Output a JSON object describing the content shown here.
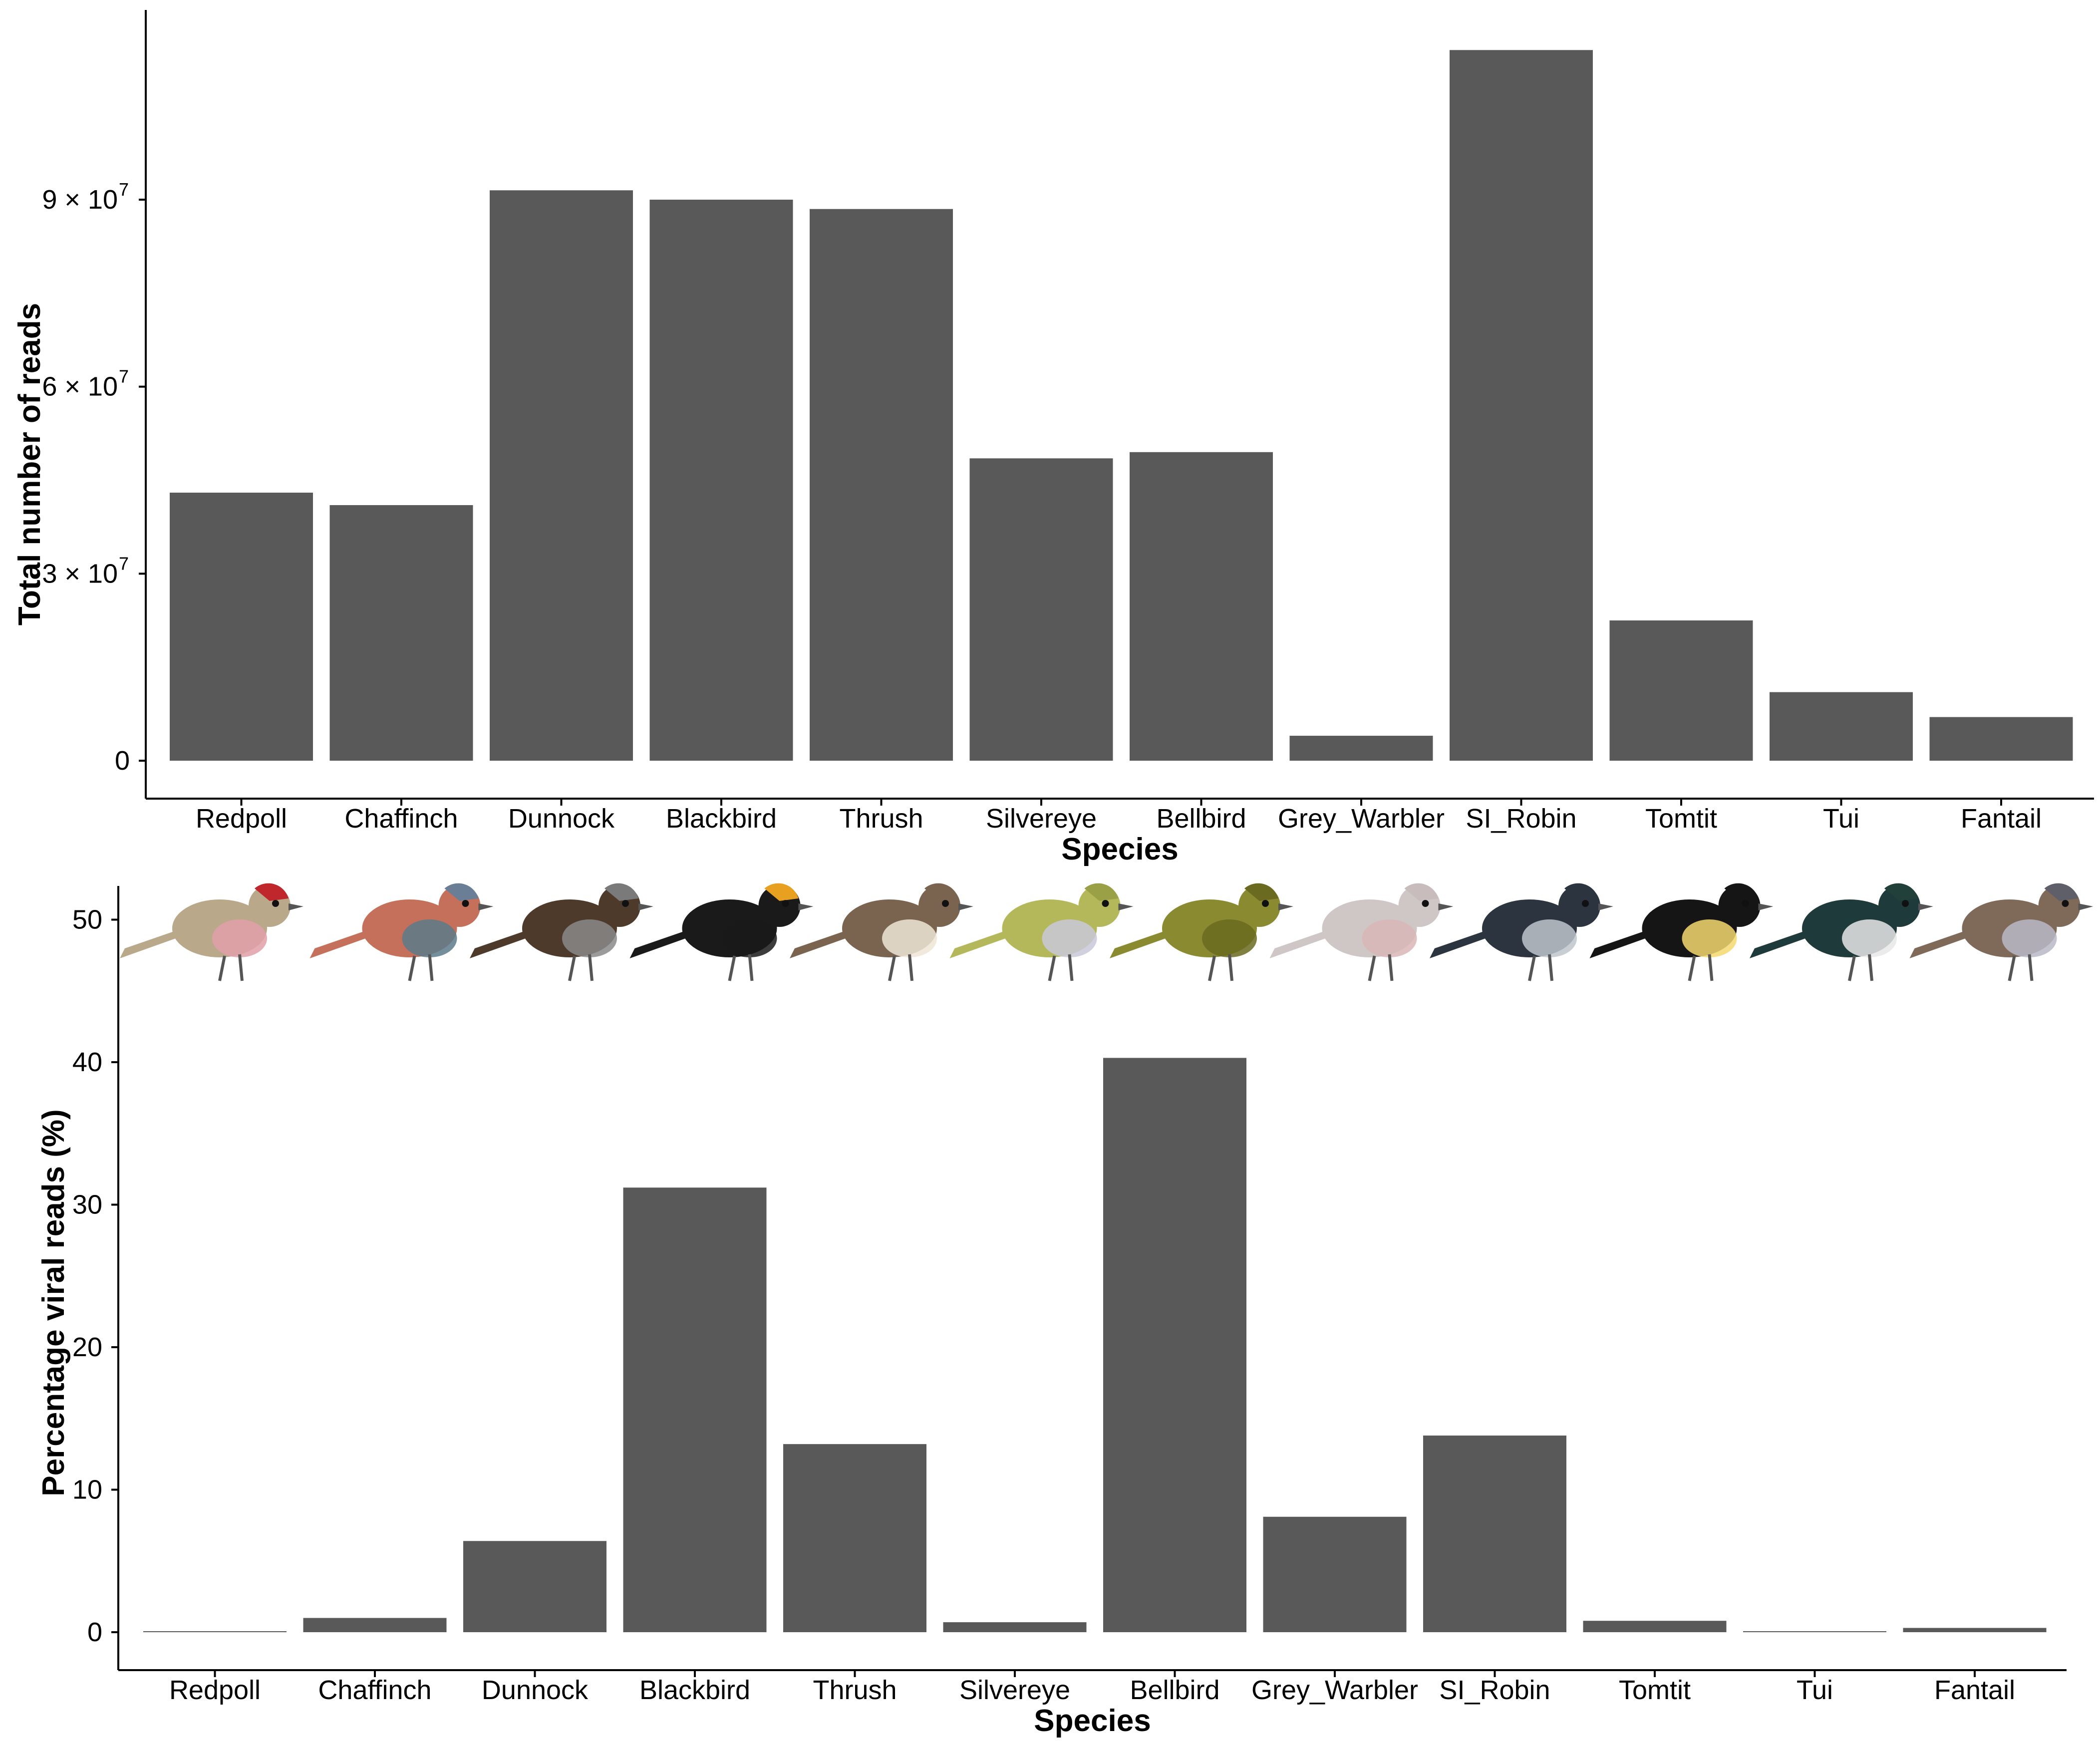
{
  "colors": {
    "bar": "#595959",
    "axis": "#000000",
    "background": "#ffffff"
  },
  "chart_data": [
    {
      "type": "bar",
      "title": "",
      "xlabel": "Species",
      "ylabel": "Total number of reads",
      "ylim": [
        0,
        120000000
      ],
      "categories": [
        "Redpoll",
        "Chaffinch",
        "Dunnock",
        "Blackbird",
        "Thrush",
        "Silvereye",
        "Bellbird",
        "Grey_Warbler",
        "SI_Robin",
        "Tomtit",
        "Tui",
        "Fantail"
      ],
      "values": [
        43000000,
        41000000,
        91500000,
        90000000,
        88500000,
        48500000,
        49500000,
        4000000,
        114000000,
        22500000,
        11000000,
        7000000
      ],
      "yticks": [
        {
          "value": 0,
          "mantissa": "0",
          "exponent": ""
        },
        {
          "value": 30000000,
          "mantissa": "3 × 10",
          "exponent": "7"
        },
        {
          "value": 60000000,
          "mantissa": "6 × 10",
          "exponent": "7"
        },
        {
          "value": 90000000,
          "mantissa": "9 × 10",
          "exponent": "7"
        }
      ]
    },
    {
      "type": "bar",
      "title": "",
      "xlabel": "Species",
      "ylabel": "Percentage viral reads (%)",
      "ylim": [
        0,
        50
      ],
      "categories": [
        "Redpoll",
        "Chaffinch",
        "Dunnock",
        "Blackbird",
        "Thrush",
        "Silvereye",
        "Bellbird",
        "Grey_Warbler",
        "SI_Robin",
        "Tomtit",
        "Tui",
        "Fantail"
      ],
      "values": [
        0.05,
        1.0,
        6.4,
        31.2,
        13.2,
        0.7,
        40.3,
        8.1,
        13.8,
        0.8,
        0.05,
        0.3
      ],
      "yticks": [
        {
          "value": 0,
          "label": "0"
        },
        {
          "value": 10,
          "label": "10"
        },
        {
          "value": 20,
          "label": "20"
        },
        {
          "value": 30,
          "label": "30"
        },
        {
          "value": 40,
          "label": "40"
        },
        {
          "value": 50,
          "label": "50"
        }
      ]
    }
  ],
  "bird_illustrations": [
    {
      "species": "Redpoll",
      "body": "#b9a88a",
      "accent": "#e0a0a8",
      "cap": "#c0272d"
    },
    {
      "species": "Chaffinch",
      "body": "#c4705a",
      "accent": "#5c7a8a",
      "cap": "#6a7f95"
    },
    {
      "species": "Dunnock",
      "body": "#4e3a2a",
      "accent": "#8a8a8a",
      "cap": "#7a7a7a"
    },
    {
      "species": "Blackbird",
      "body": "#1a1a1a",
      "accent": "#1a1a1a",
      "cap": "#e8a020"
    },
    {
      "species": "Thrush",
      "body": "#7a6450",
      "accent": "#efe6d6",
      "cap": "#7a6450"
    },
    {
      "species": "Silvereye",
      "body": "#b5b85a",
      "accent": "#c8c8d8",
      "cap": "#9aa045"
    },
    {
      "species": "Bellbird",
      "body": "#8a8a30",
      "accent": "#6a6a20",
      "cap": "#6a6a20"
    },
    {
      "species": "Grey_Warbler",
      "body": "#cfc6c6",
      "accent": "#d9b6b6",
      "cap": "#c8bcbc"
    },
    {
      "species": "SI_Robin",
      "body": "#2c3440",
      "accent": "#bfc5cc",
      "cap": "#2c3440"
    },
    {
      "species": "Tomtit",
      "body": "#151515",
      "accent": "#f4d870",
      "cap": "#151515"
    },
    {
      "species": "Tui",
      "body": "#1f3a3a",
      "accent": "#e8e8e8",
      "cap": "#22403a"
    },
    {
      "species": "Fantail",
      "body": "#7f6a5a",
      "accent": "#b8b8c8",
      "cap": "#5f5f6a"
    }
  ]
}
